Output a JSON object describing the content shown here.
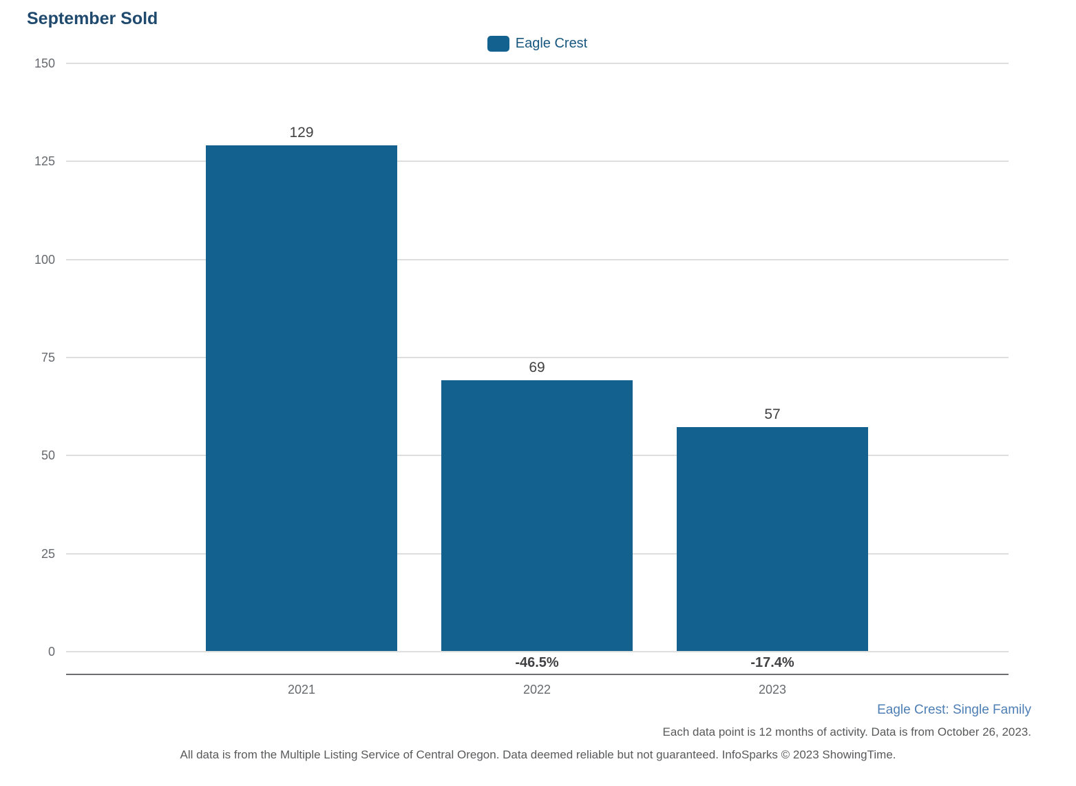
{
  "title": "September Sold",
  "legend": {
    "label": "Eagle Crest"
  },
  "chart_data": {
    "type": "bar",
    "title": "September Sold",
    "categories": [
      "2021",
      "2022",
      "2023"
    ],
    "series": [
      {
        "name": "Eagle Crest",
        "values": [
          129,
          69,
          57
        ]
      }
    ],
    "value_labels": [
      "129",
      "69",
      "57"
    ],
    "pct_change_labels": [
      "",
      "-46.5%",
      "-17.4%"
    ],
    "ylim": [
      0,
      150
    ],
    "yticks": [
      0,
      25,
      50,
      75,
      100,
      125,
      150
    ],
    "xlabel": "",
    "ylabel": "",
    "grid": "horizontal",
    "legend_position": "top-center"
  },
  "footer": {
    "series_note": "Eagle Crest: Single Family",
    "data_note": "Each data point is 12 months of activity. Data is from October 26, 2023.",
    "disclaimer": "All data is from the Multiple Listing Service of Central Oregon. Data deemed reliable but not guaranteed. InfoSparks © 2023 ShowingTime."
  },
  "colors": {
    "bar": "#12618f",
    "title_text": "#1f4a6e",
    "legend_text": "#17577f",
    "series_note_text": "#4d7eb4",
    "axis_text": "#66696e",
    "label_text": "#414042",
    "note_text": "#58595b",
    "gridline": "#dedede",
    "axis_line": "#6d6e71"
  }
}
